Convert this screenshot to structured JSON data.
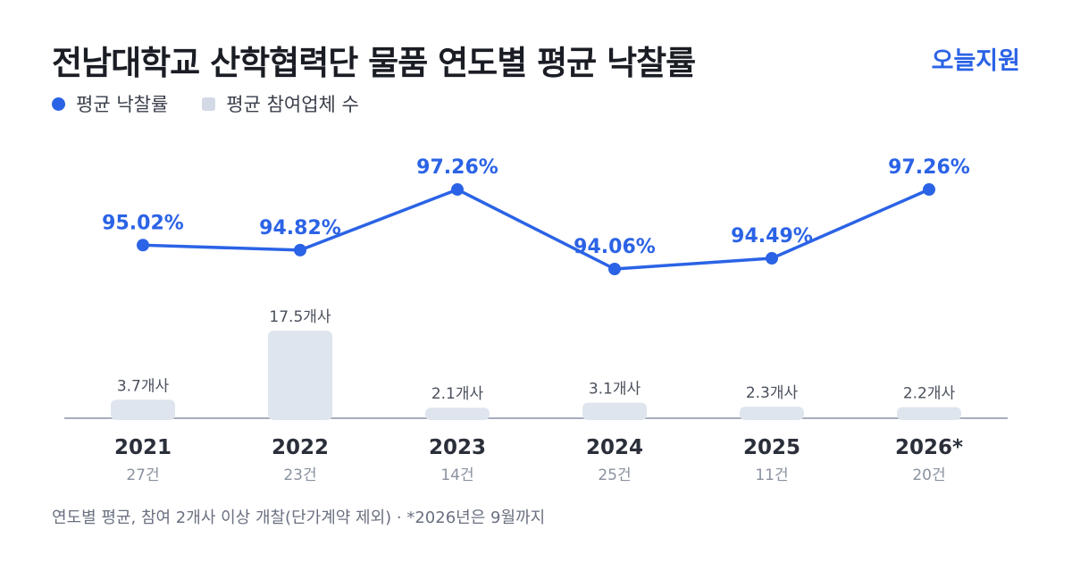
{
  "header": {
    "title": "전남대학교 산학협력단 물품 연도별 평균 낙찰률",
    "brand": "오늘지원"
  },
  "legend": {
    "rate_label": "평균 낙찰률",
    "bidders_label": "평균 참여업체 수"
  },
  "footnote": "연도별 평균, 참여 2개사 이상 개찰(단가계약 제외) · *2026년은 9월까지",
  "colors": {
    "line": "#2b63e6",
    "bar": "#dfe5ee",
    "axis": "#8a93a3"
  },
  "chart_data": {
    "type": "bar+line",
    "categories": [
      "2021",
      "2022",
      "2023",
      "2024",
      "2025",
      "2026*"
    ],
    "counts": [
      "27건",
      "23건",
      "14건",
      "25건",
      "11건",
      "20건"
    ],
    "series": [
      {
        "name": "평균 낙찰률",
        "type": "line",
        "values": [
          95.02,
          94.82,
          97.26,
          94.06,
          94.49,
          97.26
        ],
        "labels": [
          "95.02%",
          "94.82%",
          "97.26%",
          "94.06%",
          "94.49%",
          "97.26%"
        ]
      },
      {
        "name": "평균 참여업체 수",
        "type": "bar",
        "values": [
          3.7,
          17.5,
          2.1,
          3.1,
          2.3,
          2.2
        ],
        "labels": [
          "3.7개사",
          "17.5개사",
          "2.1개사",
          "3.1개사",
          "2.3개사",
          "2.2개사"
        ]
      }
    ]
  }
}
